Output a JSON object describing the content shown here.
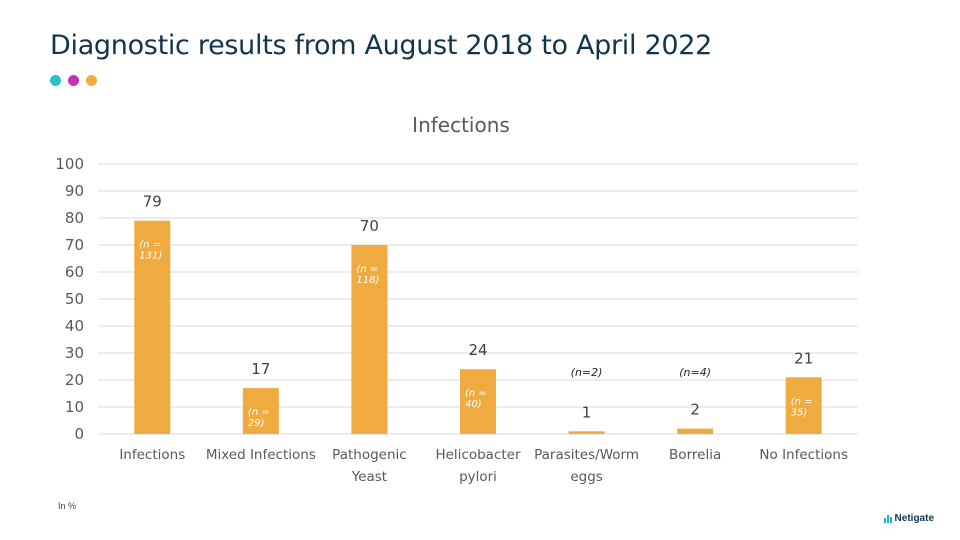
{
  "page": {
    "title": "Diagnostic results from August 2018 to April 2022",
    "footnote": "In %",
    "brand": "Netigate",
    "dot_colors": [
      "#2cbfc9",
      "#c233b5",
      "#f0ac3e"
    ]
  },
  "colors": {
    "bar": "#f0ab40",
    "grid": "#d9d9d9",
    "text": "#595959",
    "brand_icon": "#1fb5c4"
  },
  "chart_data": {
    "type": "bar",
    "title": "Infections",
    "ylim": [
      0,
      100
    ],
    "yticks": [
      0,
      10,
      20,
      30,
      40,
      50,
      60,
      70,
      80,
      90,
      100
    ],
    "grid": true,
    "legend": "none",
    "categories": [
      [
        "Infections"
      ],
      [
        "Mixed Infections"
      ],
      [
        "Pathogenic",
        "Yeast"
      ],
      [
        "Helicobacter",
        "pylori"
      ],
      [
        "Parasites/Worm",
        "eggs"
      ],
      [
        "Borrelia"
      ],
      [
        "No Infections"
      ]
    ],
    "values": [
      79,
      17,
      70,
      24,
      1,
      2,
      21
    ],
    "annotations": [
      {
        "lines": [
          "(n =",
          "131)"
        ],
        "placement": "inside"
      },
      {
        "lines": [
          "(n =",
          "29)"
        ],
        "placement": "inside"
      },
      {
        "lines": [
          "(n =",
          "118)"
        ],
        "placement": "inside"
      },
      {
        "lines": [
          "(n =",
          "40)"
        ],
        "placement": "inside"
      },
      {
        "lines": [
          "(n=2)"
        ],
        "placement": "above"
      },
      {
        "lines": [
          "(n=4)"
        ],
        "placement": "above"
      },
      {
        "lines": [
          "(n =",
          "35)"
        ],
        "placement": "inside"
      }
    ]
  }
}
